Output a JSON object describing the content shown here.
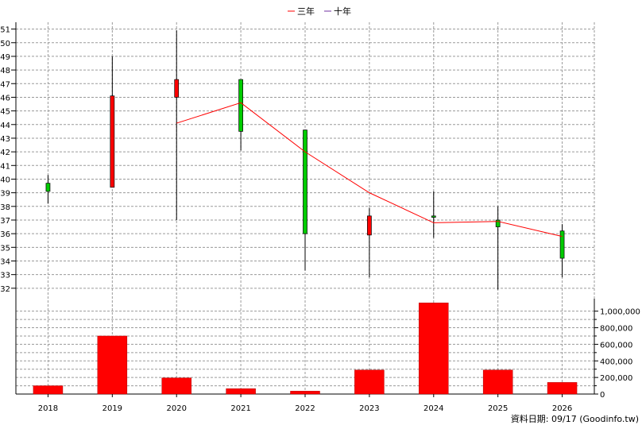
{
  "chart_data": {
    "type": "candlestick+line+bar",
    "legend": [
      {
        "name": "三年",
        "color": "#ff0000"
      },
      {
        "name": "十年",
        "color": "#7030a0"
      }
    ],
    "categories": [
      "2018",
      "2019",
      "2020",
      "2021",
      "2022",
      "2023",
      "2024",
      "2025",
      "2026"
    ],
    "price": {
      "ylim": [
        31,
        51.5
      ],
      "yticks": [
        "32",
        "33",
        "34",
        "35",
        "36",
        "37",
        "38",
        "39",
        "40",
        "41",
        "42",
        "43",
        "44",
        "45",
        "46",
        "47",
        "48",
        "49",
        "50",
        "51"
      ],
      "candles": [
        {
          "open": 39.7,
          "close": 39.1,
          "high": 40.3,
          "low": 38.2
        },
        {
          "open": 39.4,
          "close": 46.1,
          "high": 49.0,
          "low": 39.4
        },
        {
          "open": 46.0,
          "close": 47.3,
          "high": 50.9,
          "low": 37.0
        },
        {
          "open": 47.3,
          "close": 43.5,
          "high": 47.3,
          "low": 42.1
        },
        {
          "open": 43.6,
          "close": 36.0,
          "high": 43.6,
          "low": 33.3
        },
        {
          "open": 35.9,
          "close": 37.3,
          "high": 37.9,
          "low": 32.8
        },
        {
          "open": 37.3,
          "close": 37.2,
          "high": 39.1,
          "low": 35.7
        },
        {
          "open": 37.0,
          "close": 36.5,
          "high": 38.0,
          "low": 31.9
        },
        {
          "open": 36.2,
          "close": 34.2,
          "high": 36.7,
          "low": 32.8
        }
      ],
      "up_color": "#ff0000",
      "down_color": "#00cc00",
      "ma3": [
        null,
        null,
        44.1,
        45.6,
        42.0,
        39.0,
        36.8,
        36.9,
        35.8
      ]
    },
    "volume": {
      "ylim": [
        0,
        1150000
      ],
      "yticks": [
        "0",
        "200,000",
        "400,000",
        "600,000",
        "800,000",
        "1,000,000"
      ],
      "ytick_values": [
        0,
        200000,
        400000,
        600000,
        800000,
        1000000
      ],
      "values": [
        100000,
        700000,
        195000,
        65000,
        35000,
        290000,
        1100000,
        290000,
        140000
      ],
      "color": "#ff0000"
    },
    "grid": true,
    "source_text": "資料日期: 09/17  (Goodinfo.tw)"
  }
}
